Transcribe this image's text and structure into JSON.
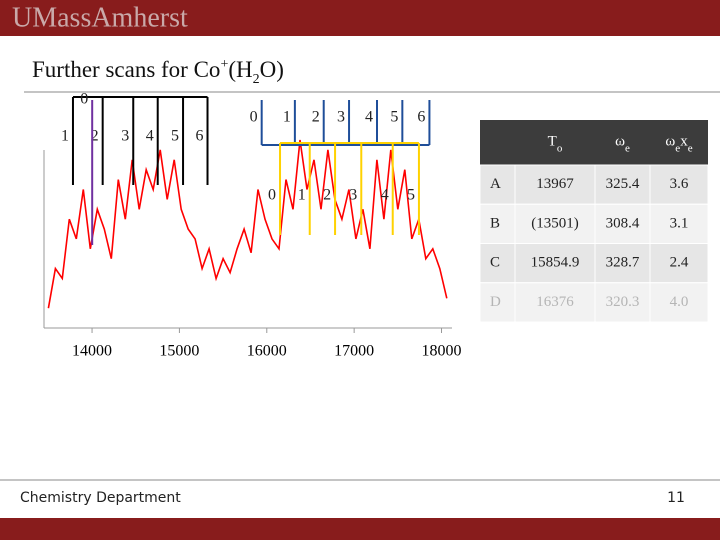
{
  "header": {
    "brand": "UMassAmherst"
  },
  "title": [
    "Further scans for Co",
    "+",
    "(H",
    "2",
    "O)"
  ],
  "chart_data": {
    "type": "line",
    "x": [
      13500,
      13580,
      13660,
      13740,
      13820,
      13900,
      13980,
      14060,
      14140,
      14220,
      14300,
      14380,
      14460,
      14540,
      14620,
      14700,
      14780,
      14860,
      14940,
      15020,
      15100,
      15180,
      15260,
      15340,
      15420,
      15500,
      15580,
      15660,
      15740,
      15820,
      15900,
      15980,
      16060,
      16140,
      16220,
      16300,
      16380,
      16460,
      16540,
      16620,
      16700,
      16780,
      16860,
      16940,
      17020,
      17100,
      17180,
      17260,
      17340,
      17420,
      17500,
      17580,
      17660,
      17740,
      17820,
      17900,
      17980,
      18060
    ],
    "values": [
      10,
      30,
      25,
      55,
      45,
      70,
      40,
      60,
      50,
      35,
      75,
      55,
      85,
      60,
      80,
      70,
      90,
      65,
      85,
      60,
      50,
      45,
      30,
      40,
      25,
      35,
      28,
      40,
      50,
      38,
      70,
      55,
      45,
      40,
      75,
      60,
      95,
      70,
      85,
      60,
      90,
      65,
      55,
      70,
      45,
      60,
      40,
      85,
      55,
      90,
      60,
      80,
      45,
      55,
      35,
      40,
      30,
      15
    ],
    "color": "#ff0000",
    "xlim": [
      13450,
      18120
    ],
    "xticks": [
      14000,
      15000,
      16000,
      17000,
      18000
    ],
    "progressions": [
      {
        "color": "#000000",
        "labels": [
          "1",
          "2",
          "3",
          "4",
          "5",
          "6"
        ],
        "positions": [
          13690,
          14030,
          14380,
          14660,
          14950,
          15230
        ]
      },
      {
        "color": "#7030a0",
        "labels": [
          "0"
        ],
        "positions": [
          13910
        ]
      },
      {
        "color": "#1f4e99",
        "labels": [
          "0",
          "1",
          "2",
          "3",
          "4",
          "5",
          "6"
        ],
        "positions": [
          15850,
          16230,
          16560,
          16850,
          17170,
          17460,
          17770
        ]
      },
      {
        "color": "#ffd200",
        "labels": [
          "0",
          "1",
          "2",
          "3",
          "4",
          "5"
        ],
        "positions": [
          16060,
          16400,
          16690,
          16990,
          17350,
          17650
        ]
      }
    ]
  },
  "table": {
    "header": [
      [],
      [
        [
          "T",
          "o"
        ]
      ],
      [
        [
          "ω",
          "e"
        ]
      ],
      [
        [
          "ω",
          "e"
        ],
        [
          "x",
          "e"
        ]
      ]
    ],
    "rows": [
      [
        "A",
        "13967",
        "325.4",
        "3.6"
      ],
      [
        "B",
        "(13501)",
        "308.4",
        "3.1"
      ],
      [
        "C",
        "15854.9",
        "328.7",
        "2.4"
      ],
      [
        "D",
        "16376",
        "320.3",
        "4.0"
      ]
    ]
  },
  "footer": {
    "department": "Chemistry Department",
    "page": "11"
  }
}
